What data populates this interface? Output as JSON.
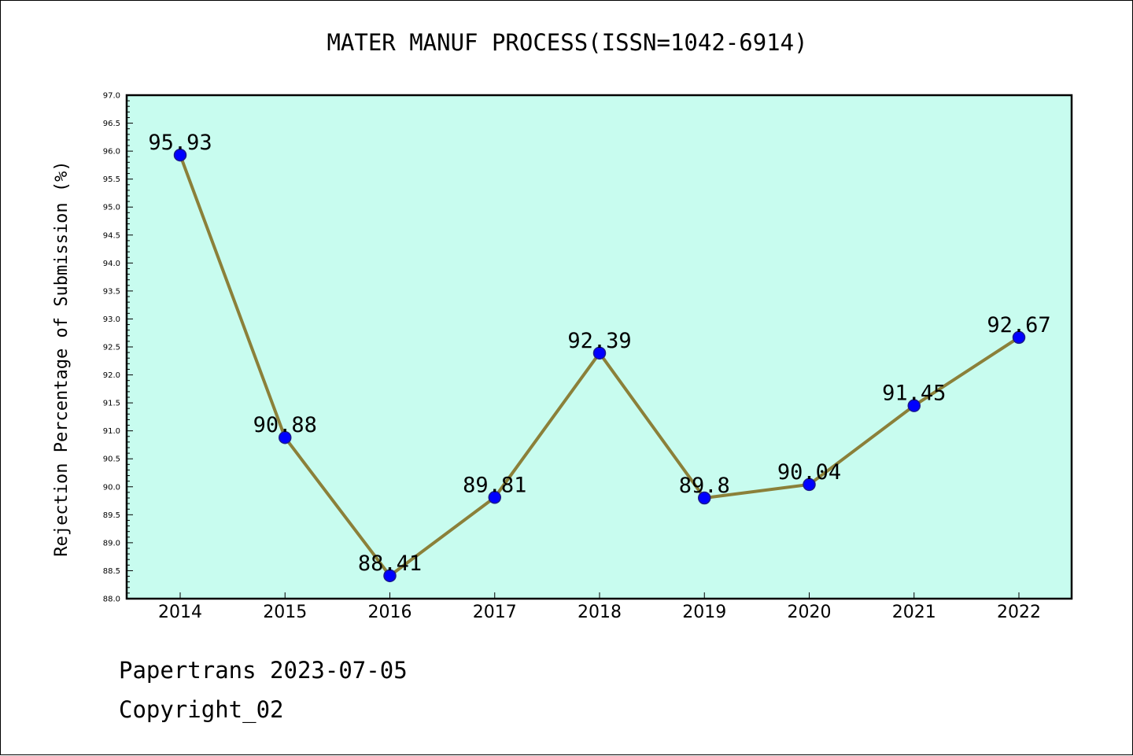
{
  "chart_data": {
    "type": "line",
    "title": "MATER MANUF PROCESS(ISSN=1042-6914)",
    "xlabel": "",
    "ylabel": "Rejection Percentage of Submission (%)",
    "categories": [
      "2014",
      "2015",
      "2016",
      "2017",
      "2018",
      "2019",
      "2020",
      "2021",
      "2022"
    ],
    "values": [
      95.93,
      90.88,
      88.41,
      89.81,
      92.39,
      89.8,
      90.04,
      91.45,
      92.67
    ],
    "data_labels": [
      "95.93",
      "90.88",
      "88.41",
      "89.81",
      "92.39",
      "89.8",
      "90.04",
      "91.45",
      "92.67"
    ],
    "ylim": [
      88.0,
      97.0
    ],
    "ytick_step": 0.5,
    "yticks": [
      "88.0",
      "88.5",
      "89.0",
      "89.5",
      "90.0",
      "90.5",
      "91.0",
      "91.5",
      "92.0",
      "92.5",
      "93.0",
      "93.5",
      "94.0",
      "94.5",
      "95.0",
      "95.5",
      "96.0",
      "96.5",
      "97.0"
    ],
    "grid": false,
    "colors": {
      "plot_background": "#c8fcef",
      "line": "#8b8039",
      "marker": "#0000ff",
      "marker_edge": "#1a1a8c"
    }
  },
  "footer": {
    "date_line": "Papertrans 2023-07-05",
    "copyright": "Copyright_02"
  }
}
